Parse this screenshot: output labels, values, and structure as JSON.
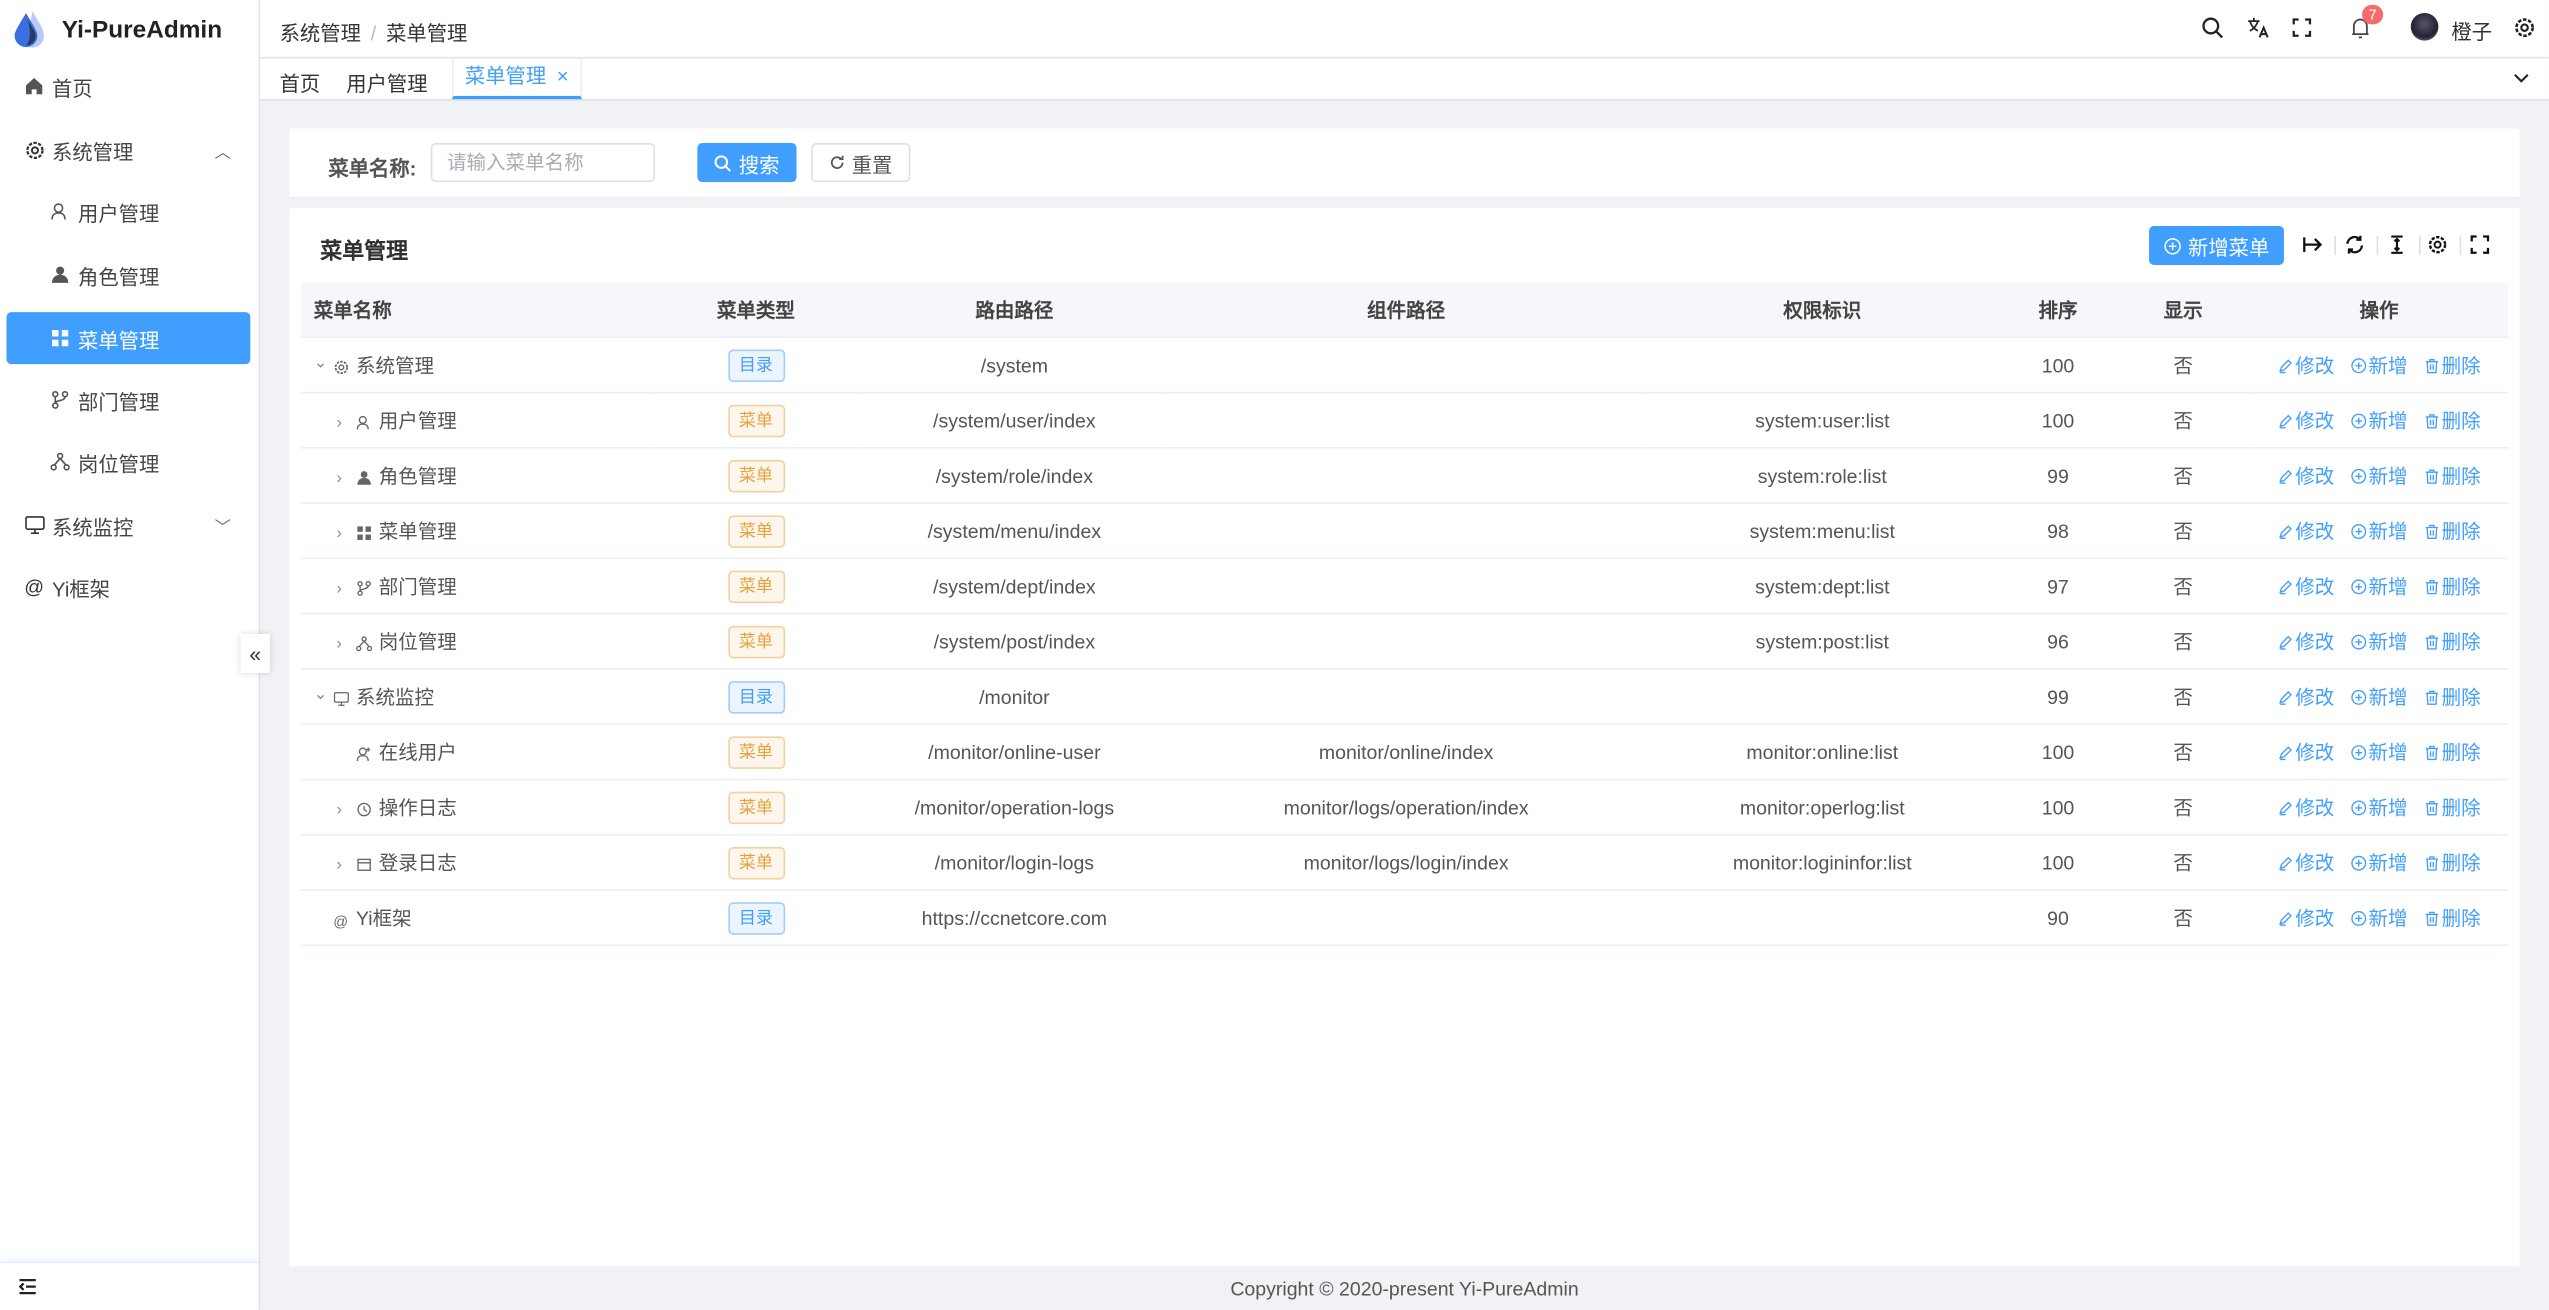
{
  "app": {
    "title": "Yi-PureAdmin"
  },
  "sidebar": {
    "items": [
      {
        "label": "首页",
        "icon": "home-icon"
      },
      {
        "label": "系统管理",
        "icon": "gear-icon",
        "expanded": true
      },
      {
        "label": "用户管理",
        "icon": "user-icon"
      },
      {
        "label": "角色管理",
        "icon": "role-icon"
      },
      {
        "label": "菜单管理",
        "icon": "grid-icon",
        "active": true
      },
      {
        "label": "部门管理",
        "icon": "branch-icon"
      },
      {
        "label": "岗位管理",
        "icon": "org-icon"
      },
      {
        "label": "系统监控",
        "icon": "monitor-icon",
        "expanded": false
      },
      {
        "label": "Yi框架",
        "icon": "at-icon"
      }
    ],
    "collapse_label": "«"
  },
  "header": {
    "breadcrumb": [
      "系统管理",
      "菜单管理"
    ],
    "separator": "/",
    "notification_count": "7",
    "username": "橙子"
  },
  "tabs": [
    {
      "label": "首页"
    },
    {
      "label": "用户管理"
    },
    {
      "label": "菜单管理",
      "active": true,
      "close": "×"
    }
  ],
  "search": {
    "label": "菜单名称:",
    "placeholder": "请输入菜单名称",
    "search_button": "搜索",
    "reset_button": "重置"
  },
  "table": {
    "title": "菜单管理",
    "add_button": "新增菜单",
    "columns": [
      "菜单名称",
      "菜单类型",
      "路由路径",
      "组件路径",
      "权限标识",
      "排序",
      "显示",
      "操作"
    ],
    "actions": {
      "edit": "修改",
      "add": "新增",
      "delete": "删除"
    },
    "rows": [
      {
        "name": "系统管理",
        "level": 0,
        "expander": "down",
        "type": "目录",
        "kind": "dir",
        "route": "/system",
        "component": "",
        "perm": "",
        "sort": "100",
        "show": "否"
      },
      {
        "name": "用户管理",
        "level": 1,
        "expander": "right",
        "type": "菜单",
        "kind": "menu",
        "route": "/system/user/index",
        "component": "",
        "perm": "system:user:list",
        "sort": "100",
        "show": "否"
      },
      {
        "name": "角色管理",
        "level": 1,
        "expander": "right",
        "type": "菜单",
        "kind": "menu",
        "route": "/system/role/index",
        "component": "",
        "perm": "system:role:list",
        "sort": "99",
        "show": "否"
      },
      {
        "name": "菜单管理",
        "level": 1,
        "expander": "right",
        "type": "菜单",
        "kind": "menu",
        "route": "/system/menu/index",
        "component": "",
        "perm": "system:menu:list",
        "sort": "98",
        "show": "否"
      },
      {
        "name": "部门管理",
        "level": 1,
        "expander": "right",
        "type": "菜单",
        "kind": "menu",
        "route": "/system/dept/index",
        "component": "",
        "perm": "system:dept:list",
        "sort": "97",
        "show": "否"
      },
      {
        "name": "岗位管理",
        "level": 1,
        "expander": "right",
        "type": "菜单",
        "kind": "menu",
        "route": "/system/post/index",
        "component": "",
        "perm": "system:post:list",
        "sort": "96",
        "show": "否"
      },
      {
        "name": "系统监控",
        "level": 0,
        "expander": "down",
        "type": "目录",
        "kind": "dir",
        "route": "/monitor",
        "component": "",
        "perm": "",
        "sort": "99",
        "show": "否"
      },
      {
        "name": "在线用户",
        "level": 1,
        "expander": "",
        "type": "菜单",
        "kind": "menu",
        "route": "/monitor/online-user",
        "component": "monitor/online/index",
        "perm": "monitor:online:list",
        "sort": "100",
        "show": "否"
      },
      {
        "name": "操作日志",
        "level": 1,
        "expander": "right",
        "type": "菜单",
        "kind": "menu",
        "route": "/monitor/operation-logs",
        "component": "monitor/logs/operation/index",
        "perm": "monitor:operlog:list",
        "sort": "100",
        "show": "否"
      },
      {
        "name": "登录日志",
        "level": 1,
        "expander": "right",
        "type": "菜单",
        "kind": "menu",
        "route": "/monitor/login-logs",
        "component": "monitor/logs/login/index",
        "perm": "monitor:logininfor:list",
        "sort": "100",
        "show": "否"
      },
      {
        "name": "Yi框架",
        "level": 0,
        "expander": "",
        "type": "目录",
        "kind": "dir",
        "route": "https://ccnetcore.com",
        "component": "",
        "perm": "",
        "sort": "90",
        "show": "否"
      }
    ]
  },
  "footer": {
    "copyright": "Copyright © 2020-present Yi-PureAdmin"
  },
  "colors": {
    "primary": "#409eff",
    "warning": "#e6a23c",
    "danger": "#f56c6c",
    "background": "#f0f2f5"
  }
}
